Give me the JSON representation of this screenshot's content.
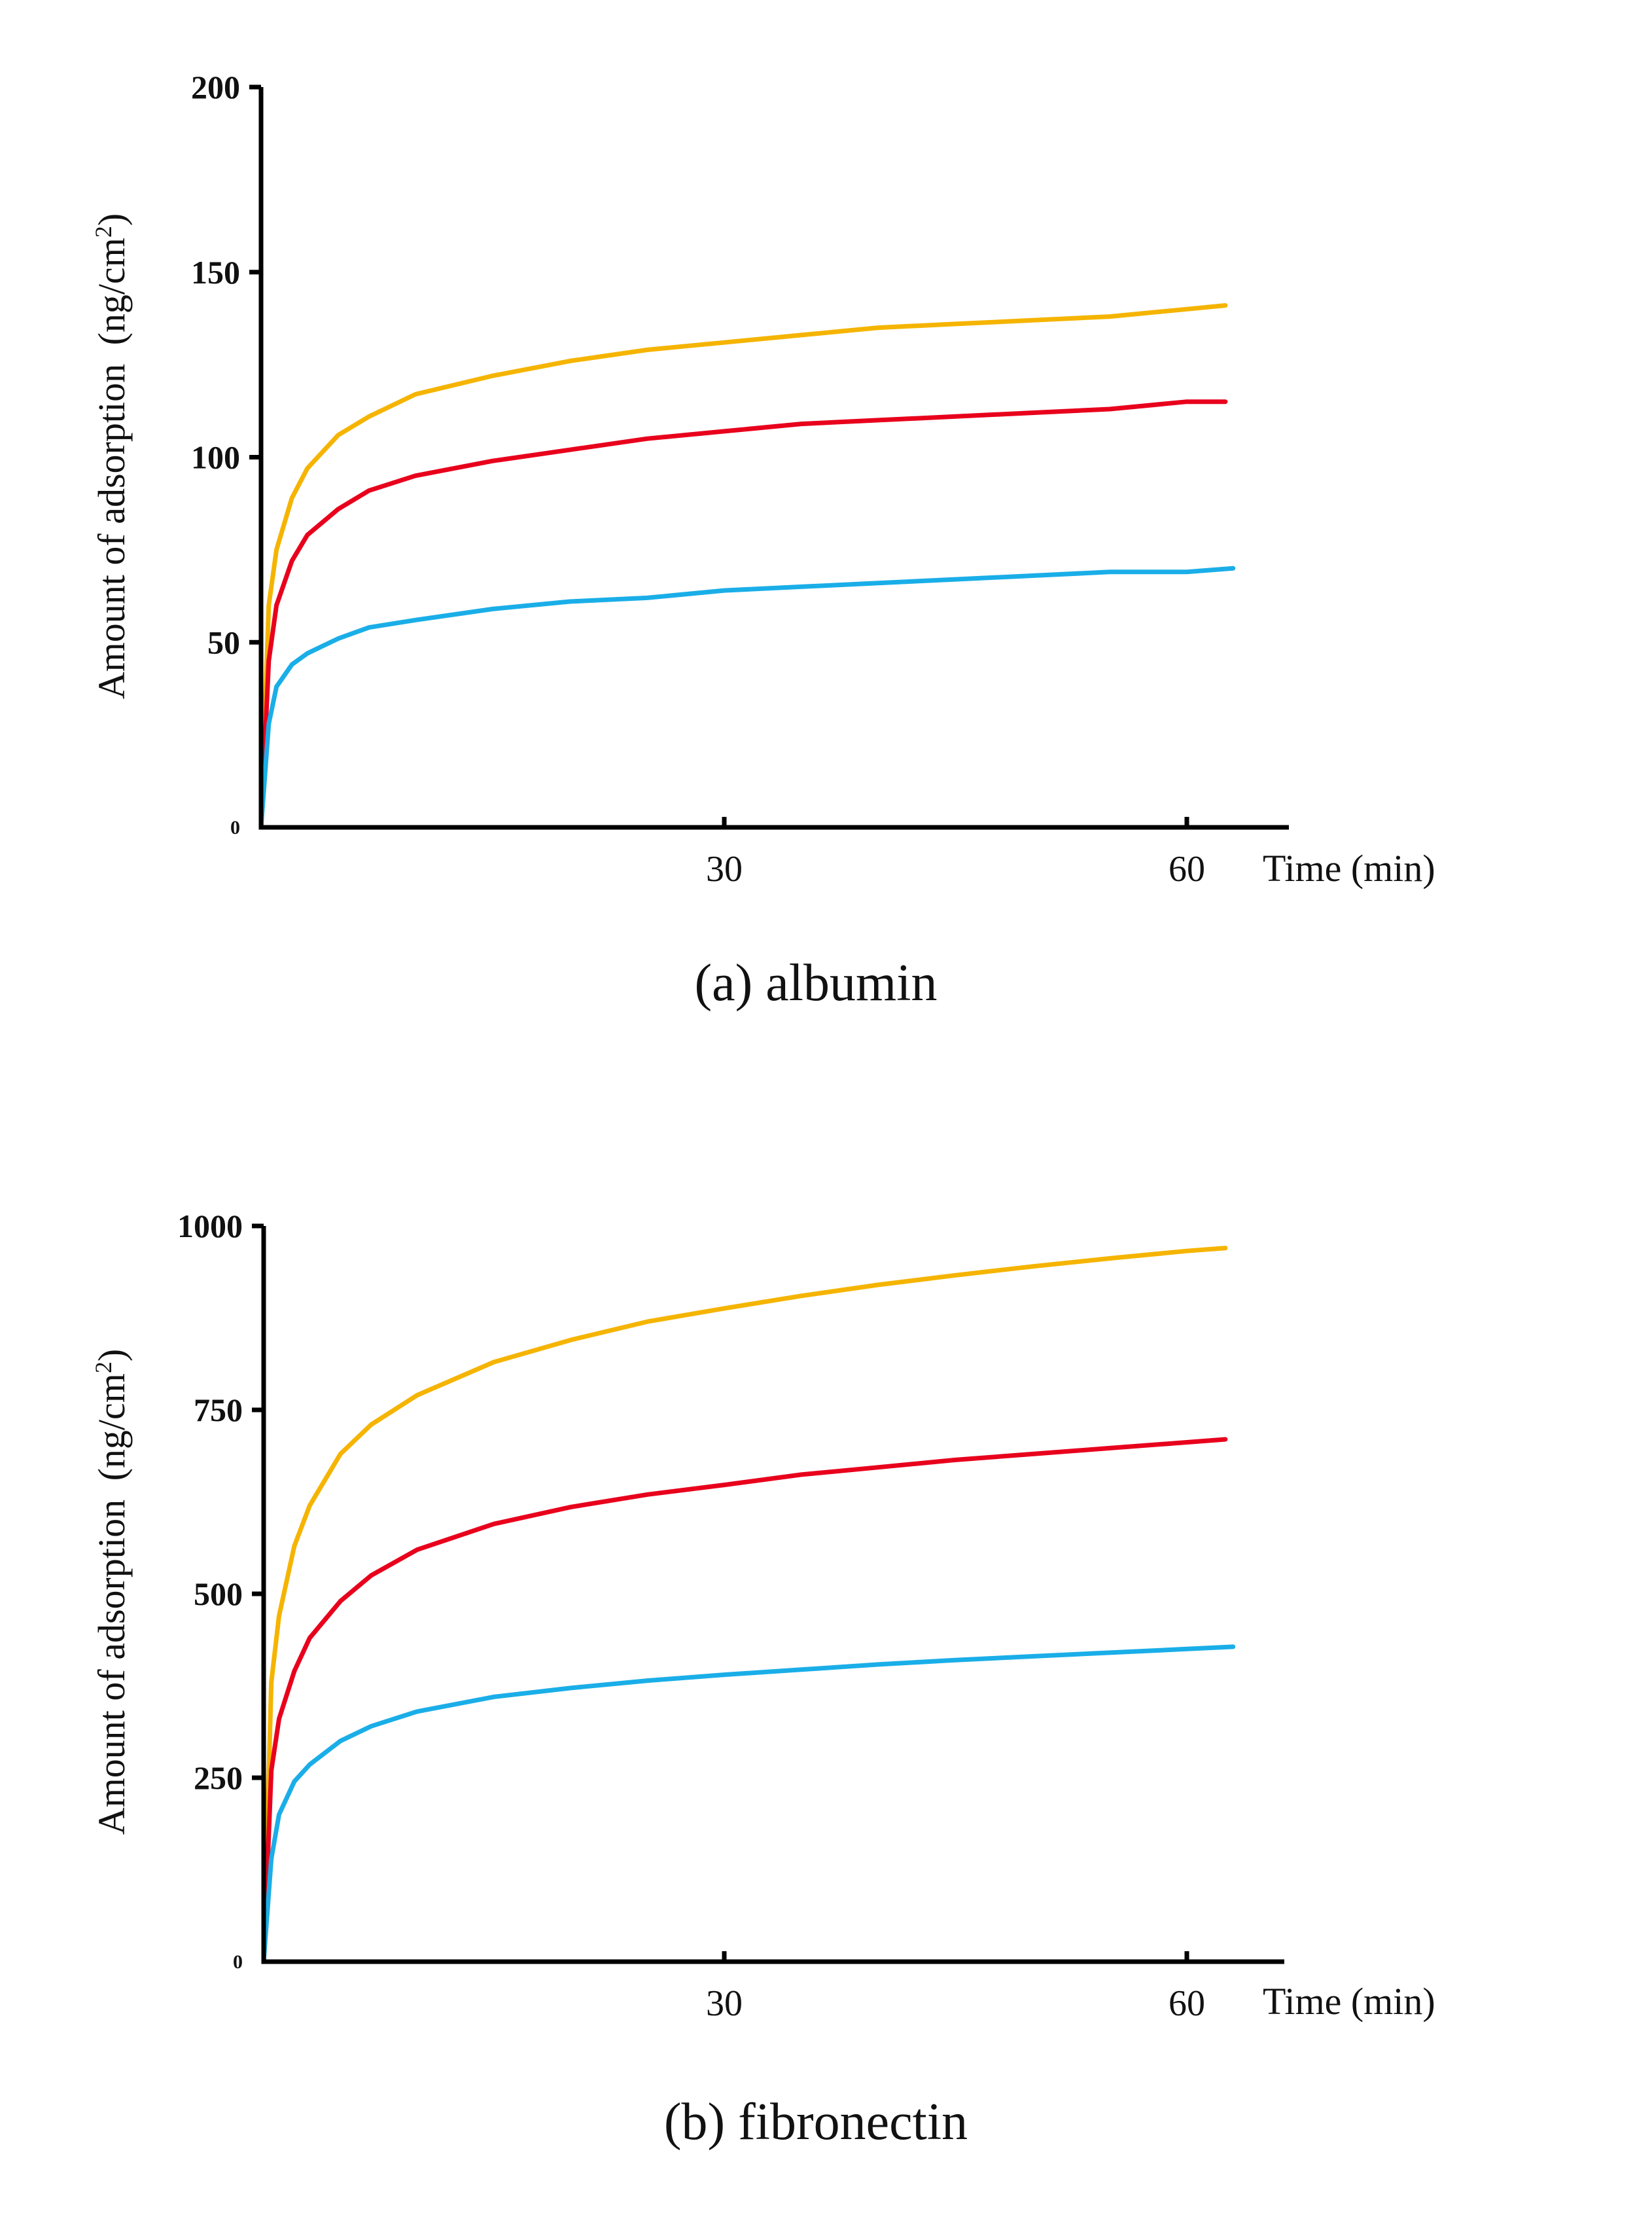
{
  "chart_data": [
    {
      "id": "albumin",
      "type": "line",
      "caption": "(a) albumin",
      "ylabel": "Amount of adsorption",
      "ylabel_unit": "(ng/cm",
      "ylabel_unit_sup": "2",
      "ylabel_unit_close": ")",
      "xlabel": "Time (min)",
      "xlim": [
        0,
        66
      ],
      "ylim": [
        0,
        200
      ],
      "xticks": [
        30,
        60
      ],
      "xtick_labels": [
        "30",
        "60"
      ],
      "yticks": [
        0,
        50,
        100,
        150,
        200
      ],
      "ytick_labels": [
        "0",
        "50",
        "100",
        "150",
        "200"
      ],
      "grid": false,
      "series": [
        {
          "color": "#f5b400",
          "x": [
            0,
            0.5,
            1,
            2,
            3,
            5,
            7,
            10,
            15,
            20,
            25,
            30,
            35,
            40,
            45,
            50,
            55,
            60,
            62.5
          ],
          "values": [
            0,
            60,
            75,
            89,
            97,
            106,
            111,
            117,
            122,
            126,
            129,
            131,
            133,
            135,
            136,
            137,
            138,
            140,
            141
          ]
        },
        {
          "color": "#e8001c",
          "x": [
            0,
            0.5,
            1,
            2,
            3,
            5,
            7,
            10,
            15,
            20,
            25,
            30,
            35,
            40,
            45,
            50,
            55,
            60,
            62.5
          ],
          "values": [
            0,
            45,
            60,
            72,
            79,
            86,
            91,
            95,
            99,
            102,
            105,
            107,
            109,
            110,
            111,
            112,
            113,
            115,
            115
          ]
        },
        {
          "color": "#1aaee8",
          "x": [
            0,
            0.5,
            1,
            2,
            3,
            5,
            7,
            10,
            15,
            20,
            25,
            30,
            35,
            40,
            45,
            50,
            55,
            60,
            63
          ],
          "values": [
            0,
            28,
            38,
            44,
            47,
            51,
            54,
            56,
            59,
            61,
            62,
            64,
            65,
            66,
            67,
            68,
            69,
            69,
            70
          ]
        }
      ]
    },
    {
      "id": "fibronectin",
      "type": "line",
      "caption": "(b) fibronectin",
      "ylabel": "Amount of adsorption",
      "ylabel_unit": "(ng/cm",
      "ylabel_unit_sup": "2",
      "ylabel_unit_close": ")",
      "xlabel": "Time (min)",
      "xlim": [
        0,
        66
      ],
      "ylim": [
        0,
        1000
      ],
      "xticks": [
        30,
        60
      ],
      "xtick_labels": [
        "30",
        "60"
      ],
      "yticks": [
        0,
        250,
        500,
        750,
        1000
      ],
      "ytick_labels": [
        "0",
        "250",
        "500",
        "750",
        "1000"
      ],
      "grid": false,
      "series": [
        {
          "color": "#f5b400",
          "x": [
            0,
            0.5,
            1,
            2,
            3,
            5,
            7,
            10,
            15,
            20,
            25,
            30,
            35,
            40,
            45,
            50,
            55,
            60,
            62.5
          ],
          "values": [
            0,
            380,
            470,
            565,
            620,
            690,
            730,
            770,
            815,
            845,
            870,
            888,
            905,
            920,
            933,
            945,
            956,
            966,
            970
          ]
        },
        {
          "color": "#e8001c",
          "x": [
            0,
            0.5,
            1,
            2,
            3,
            5,
            7,
            10,
            15,
            20,
            25,
            30,
            35,
            40,
            45,
            50,
            55,
            60,
            62.5
          ],
          "values": [
            0,
            260,
            330,
            395,
            440,
            490,
            525,
            560,
            595,
            618,
            635,
            648,
            662,
            672,
            682,
            690,
            698,
            706,
            710
          ]
        },
        {
          "color": "#1aaee8",
          "x": [
            0,
            0.5,
            1,
            2,
            3,
            5,
            7,
            10,
            15,
            20,
            25,
            30,
            35,
            40,
            45,
            50,
            55,
            60,
            63
          ],
          "values": [
            0,
            140,
            200,
            245,
            268,
            300,
            320,
            340,
            360,
            372,
            382,
            390,
            397,
            404,
            410,
            415,
            420,
            425,
            428
          ]
        }
      ]
    }
  ]
}
